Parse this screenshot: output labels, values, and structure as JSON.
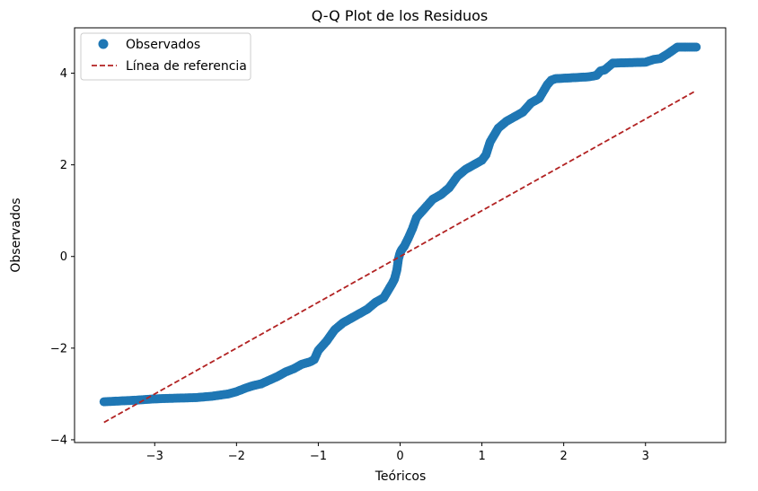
{
  "chart_data": {
    "type": "scatter",
    "title": "Q-Q Plot de los Residuos",
    "xlabel": "Teóricos",
    "ylabel": "Observados",
    "xlim": [
      -3.98,
      3.98
    ],
    "ylim": [
      -4.06,
      4.99
    ],
    "xticks": [
      -3,
      -2,
      -1,
      0,
      1,
      2,
      3
    ],
    "yticks": [
      -4,
      -2,
      0,
      2,
      4
    ],
    "grid": false,
    "legend_position": "top-left",
    "series": [
      {
        "name": "Observados",
        "kind": "scatter",
        "color": "#1f77b4",
        "x": [
          -3.62,
          -3.39,
          -3.27,
          -3.18,
          -3.1,
          -3.02,
          -2.9,
          -2.7,
          -2.5,
          -2.3,
          -2.1,
          -2.0,
          -1.9,
          -1.8,
          -1.7,
          -1.6,
          -1.5,
          -1.4,
          -1.3,
          -1.2,
          -1.1,
          -1.05,
          -1.0,
          -0.9,
          -0.8,
          -0.7,
          -0.6,
          -0.5,
          -0.4,
          -0.3,
          -0.2,
          -0.15,
          -0.1,
          -0.07,
          -0.04,
          -0.02,
          0.0,
          0.02,
          0.05,
          0.1,
          0.15,
          0.2,
          0.25,
          0.3,
          0.4,
          0.5,
          0.6,
          0.7,
          0.8,
          0.9,
          1.0,
          1.05,
          1.1,
          1.2,
          1.3,
          1.4,
          1.5,
          1.6,
          1.7,
          1.8,
          1.85,
          1.9,
          2.0,
          2.1,
          2.2,
          2.3,
          2.4,
          2.45,
          2.5,
          2.6,
          2.8,
          3.0,
          3.1,
          3.18,
          3.27,
          3.39,
          3.62
        ],
        "y": [
          -3.17,
          -3.15,
          -3.14,
          -3.13,
          -3.12,
          -3.11,
          -3.1,
          -3.09,
          -3.08,
          -3.05,
          -3.0,
          -2.95,
          -2.88,
          -2.82,
          -2.78,
          -2.7,
          -2.62,
          -2.52,
          -2.45,
          -2.35,
          -2.3,
          -2.25,
          -2.05,
          -1.85,
          -1.6,
          -1.45,
          -1.35,
          -1.25,
          -1.15,
          -1.0,
          -0.9,
          -0.75,
          -0.6,
          -0.5,
          -0.3,
          -0.05,
          0.08,
          0.15,
          0.22,
          0.4,
          0.6,
          0.85,
          0.95,
          1.05,
          1.25,
          1.35,
          1.5,
          1.75,
          1.9,
          2.0,
          2.1,
          2.22,
          2.5,
          2.8,
          2.95,
          3.05,
          3.15,
          3.35,
          3.45,
          3.75,
          3.85,
          3.88,
          3.89,
          3.9,
          3.91,
          3.92,
          3.95,
          4.05,
          4.07,
          4.22,
          4.23,
          4.24,
          4.3,
          4.32,
          4.42,
          4.57,
          4.57
        ]
      },
      {
        "name": "Línea de referencia",
        "kind": "line",
        "style": "dashed",
        "color": "#b22222",
        "x": [
          -3.62,
          3.62
        ],
        "y": [
          -3.62,
          3.62
        ]
      }
    ]
  }
}
